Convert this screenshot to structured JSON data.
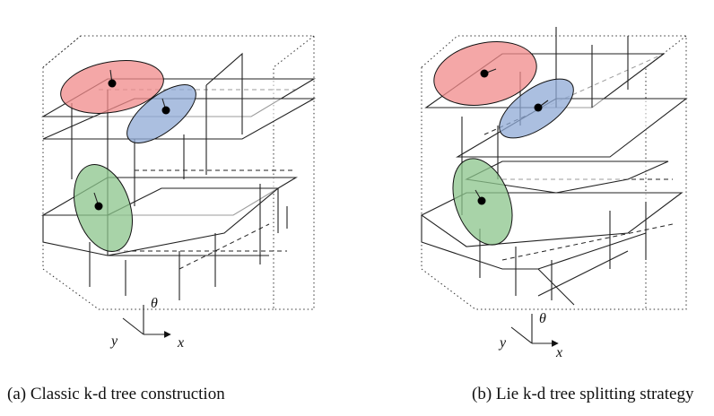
{
  "figures": [
    {
      "caption": "(a) Classic k-d tree construction",
      "axis_labels": {
        "theta": "θ",
        "y": "y",
        "x": "x"
      }
    },
    {
      "caption": "(b) Lie k-d tree splitting strategy",
      "axis_labels": {
        "theta": "θ",
        "y": "y",
        "x": "x"
      }
    }
  ]
}
